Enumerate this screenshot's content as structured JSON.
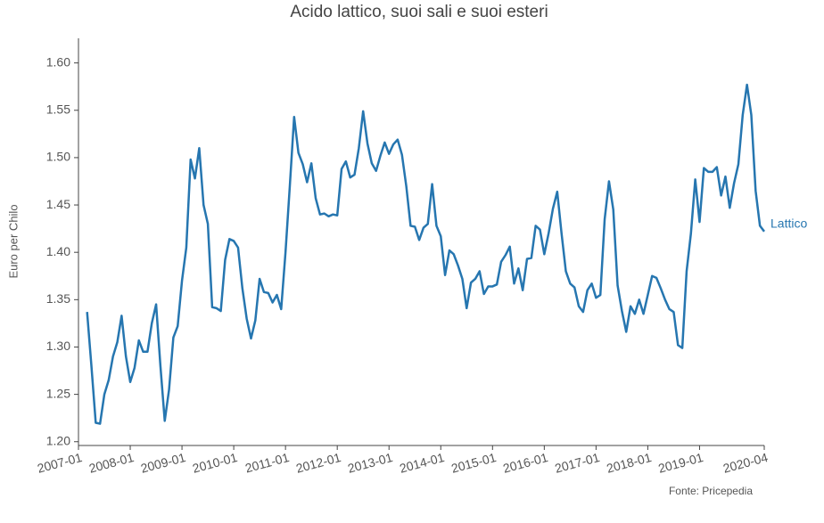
{
  "chart_data": {
    "type": "line",
    "title": "Acido lattico, suoi sali e suoi esteri",
    "y_label": "Euro per Chilo",
    "source": "Fonte: Pricepedia",
    "x": [
      "2007-01",
      "2007-02",
      "2007-03",
      "2007-04",
      "2007-05",
      "2007-06",
      "2007-07",
      "2007-08",
      "2007-09",
      "2007-10",
      "2007-11",
      "2007-12",
      "2008-01",
      "2008-02",
      "2008-03",
      "2008-04",
      "2008-05",
      "2008-06",
      "2008-07",
      "2008-08",
      "2008-09",
      "2008-10",
      "2008-11",
      "2008-12",
      "2009-01",
      "2009-02",
      "2009-03",
      "2009-04",
      "2009-05",
      "2009-06",
      "2009-07",
      "2009-08",
      "2009-09",
      "2009-10",
      "2009-11",
      "2009-12",
      "2010-01",
      "2010-02",
      "2010-03",
      "2010-04",
      "2010-05",
      "2010-06",
      "2010-07",
      "2010-08",
      "2010-09",
      "2010-10",
      "2010-11",
      "2010-12",
      "2011-01",
      "2011-02",
      "2011-03",
      "2011-04",
      "2011-05",
      "2011-06",
      "2011-07",
      "2011-08",
      "2011-09",
      "2011-10",
      "2011-11",
      "2011-12",
      "2012-01",
      "2012-02",
      "2012-03",
      "2012-04",
      "2012-05",
      "2012-06",
      "2012-07",
      "2012-08",
      "2012-09",
      "2012-10",
      "2012-11",
      "2012-12",
      "2013-01",
      "2013-02",
      "2013-03",
      "2013-04",
      "2013-05",
      "2013-06",
      "2013-07",
      "2013-08",
      "2013-09",
      "2013-10",
      "2013-11",
      "2013-12",
      "2014-01",
      "2014-02",
      "2014-03",
      "2014-04",
      "2014-05",
      "2014-06",
      "2014-07",
      "2014-08",
      "2014-09",
      "2014-10",
      "2014-11",
      "2014-12",
      "2015-01",
      "2015-02",
      "2015-03",
      "2015-04",
      "2015-05",
      "2015-06",
      "2015-07",
      "2015-08",
      "2015-09",
      "2015-10",
      "2015-11",
      "2015-12",
      "2016-01",
      "2016-02",
      "2016-03",
      "2016-04",
      "2016-05",
      "2016-06",
      "2016-07",
      "2016-08",
      "2016-09",
      "2016-10",
      "2016-11",
      "2016-12",
      "2017-01",
      "2017-02",
      "2017-03",
      "2017-04",
      "2017-05",
      "2017-06",
      "2017-07",
      "2017-08",
      "2017-09",
      "2017-10",
      "2017-11",
      "2017-12",
      "2018-01",
      "2018-02",
      "2018-03",
      "2018-04",
      "2018-05",
      "2018-06",
      "2018-07",
      "2018-08",
      "2018-09",
      "2018-10",
      "2018-11",
      "2018-12",
      "2019-01",
      "2019-02",
      "2019-03",
      "2019-04",
      "2019-05",
      "2019-06",
      "2019-07",
      "2019-08",
      "2019-09",
      "2019-10",
      "2019-11",
      "2019-12",
      "2020-01",
      "2020-02",
      "2020-03",
      "2020-04"
    ],
    "series": [
      {
        "name": "Lattico",
        "color": "#2676b0",
        "values": [
          null,
          null,
          1.337,
          1.28,
          1.22,
          1.219,
          1.25,
          1.265,
          1.29,
          1.305,
          1.333,
          1.29,
          1.263,
          1.278,
          1.307,
          1.295,
          1.295,
          1.325,
          1.345,
          1.28,
          1.222,
          1.255,
          1.31,
          1.322,
          1.37,
          1.405,
          1.498,
          1.478,
          1.51,
          1.45,
          1.43,
          1.342,
          1.341,
          1.338,
          1.392,
          1.414,
          1.412,
          1.405,
          1.362,
          1.33,
          1.309,
          1.328,
          1.372,
          1.358,
          1.357,
          1.347,
          1.355,
          1.34,
          1.4,
          1.47,
          1.543,
          1.505,
          1.493,
          1.474,
          1.494,
          1.457,
          1.44,
          1.441,
          1.438,
          1.44,
          1.439,
          1.488,
          1.496,
          1.479,
          1.482,
          1.51,
          1.549,
          1.515,
          1.494,
          1.486,
          1.502,
          1.516,
          1.504,
          1.514,
          1.519,
          1.503,
          1.47,
          1.428,
          1.427,
          1.413,
          1.426,
          1.43,
          1.472,
          1.428,
          1.417,
          1.376,
          1.402,
          1.398,
          1.386,
          1.372,
          1.341,
          1.368,
          1.372,
          1.38,
          1.356,
          1.364,
          1.364,
          1.366,
          1.39,
          1.397,
          1.406,
          1.367,
          1.383,
          1.36,
          1.393,
          1.394,
          1.428,
          1.424,
          1.398,
          1.42,
          1.446,
          1.464,
          1.42,
          1.38,
          1.367,
          1.363,
          1.343,
          1.337,
          1.36,
          1.367,
          1.352,
          1.355,
          1.435,
          1.475,
          1.445,
          1.365,
          1.338,
          1.316,
          1.343,
          1.335,
          1.35,
          1.335,
          1.355,
          1.375,
          1.373,
          1.362,
          1.35,
          1.34,
          1.337,
          1.302,
          1.299,
          1.38,
          1.42,
          1.477,
          1.432,
          1.489,
          1.485,
          1.485,
          1.49,
          1.46,
          1.48,
          1.447,
          1.473,
          1.493,
          1.545,
          1.577,
          1.545,
          1.465,
          1.428,
          1.422
        ]
      }
    ],
    "xticks": [
      "2007-01",
      "2008-01",
      "2009-01",
      "2010-01",
      "2011-01",
      "2012-01",
      "2013-01",
      "2014-01",
      "2015-01",
      "2016-01",
      "2017-01",
      "2018-01",
      "2019-01",
      "2020-04"
    ],
    "ylim": [
      1.196,
      1.626
    ],
    "yticks": [
      {
        "value": 1.2,
        "label": "1.20"
      },
      1.25,
      {
        "value": 1.3,
        "label": "1.30"
      },
      1.35,
      {
        "value": 1.4,
        "label": "1.40"
      },
      1.45,
      {
        "value": 1.5,
        "label": "1.50"
      },
      1.55,
      {
        "value": 1.6,
        "label": "1.60"
      }
    ],
    "grid": false
  }
}
